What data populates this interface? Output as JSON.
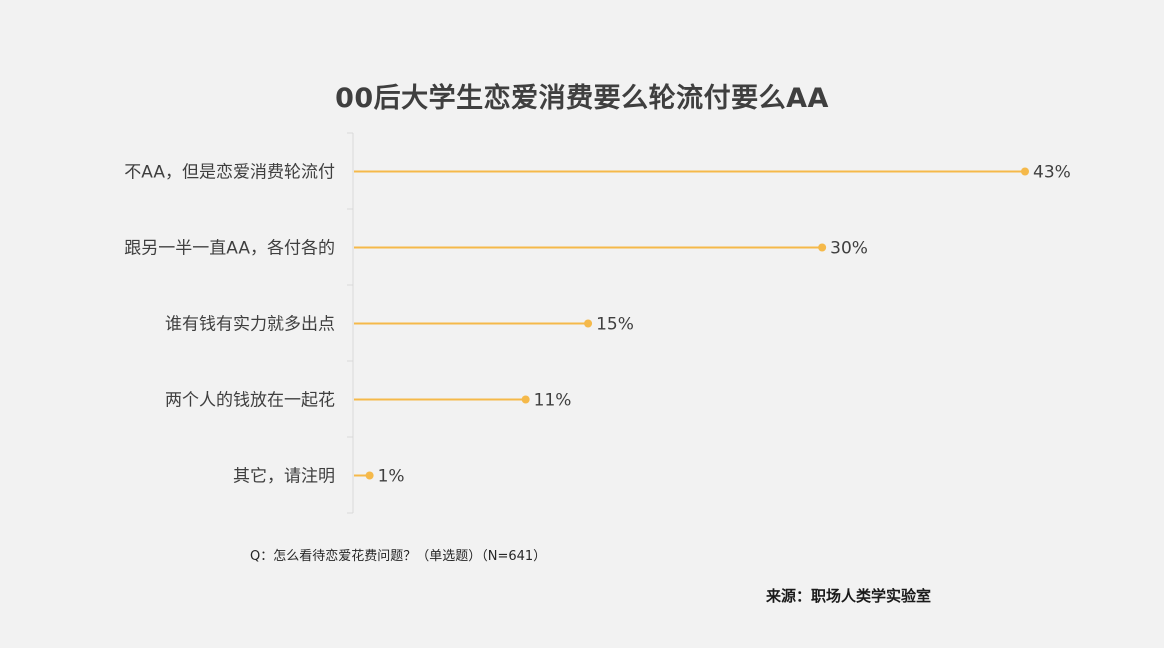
{
  "title": "00后大学生恋爱消费要么轮流付要么AA",
  "question": "Q：怎么看待恋爱花费问题？（单选题）（N=641）",
  "source": "来源：职场人类学实验室",
  "colors": {
    "bar": "#f5b94a",
    "background": "#f2f2f2",
    "text": "#3f3f3f"
  },
  "chart_data": {
    "type": "bar",
    "orientation": "horizontal",
    "style": "lollipop",
    "categories": [
      "不AA，但是恋爱消费轮流付",
      "跟另一半一直AA，各付各的",
      "谁有钱有实力就多出点",
      "两个人的钱放在一起花",
      "其它，请注明"
    ],
    "values": [
      43,
      30,
      15,
      11,
      1
    ],
    "value_labels": [
      "43%",
      "30%",
      "15%",
      "11%",
      "1%"
    ],
    "unit": "%",
    "xlim": [
      0,
      43
    ],
    "grid": false,
    "legend": "none"
  }
}
